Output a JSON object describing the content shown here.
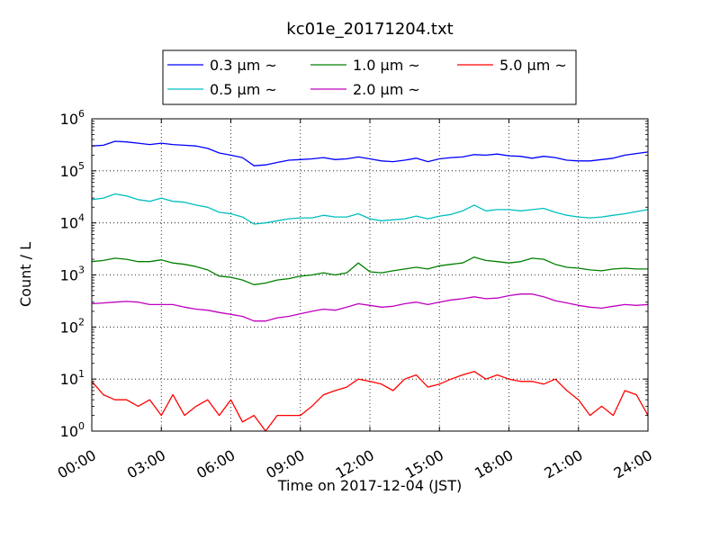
{
  "chart_data": {
    "type": "line",
    "title": "kc01e_20171204.txt",
    "xlabel": "Time on 2017-12-04 (JST)",
    "ylabel": "Count / L",
    "yscale": "log",
    "ylim": [
      1,
      1000000
    ],
    "xlim": [
      "00:00",
      "24:00"
    ],
    "grid": true,
    "legend_position": "top-center",
    "x_ticks": [
      "00:00",
      "03:00",
      "06:00",
      "09:00",
      "12:00",
      "15:00",
      "18:00",
      "21:00",
      "24:00"
    ],
    "y_ticks": [
      {
        "base": "10",
        "exp": "0"
      },
      {
        "base": "10",
        "exp": "1"
      },
      {
        "base": "10",
        "exp": "2"
      },
      {
        "base": "10",
        "exp": "3"
      },
      {
        "base": "10",
        "exp": "4"
      },
      {
        "base": "10",
        "exp": "5"
      },
      {
        "base": "10",
        "exp": "6"
      }
    ],
    "x_hours": [
      0,
      0.5,
      1,
      1.5,
      2,
      2.5,
      3,
      3.5,
      4,
      4.5,
      5,
      5.5,
      6,
      6.5,
      7,
      7.5,
      8,
      8.5,
      9,
      9.5,
      10,
      10.5,
      11,
      11.5,
      12,
      12.5,
      13,
      13.5,
      14,
      14.5,
      15,
      15.5,
      16,
      16.5,
      17,
      17.5,
      18,
      18.5,
      19,
      19.5,
      20,
      20.5,
      21,
      21.5,
      22,
      22.5,
      23,
      23.5,
      24
    ],
    "series": [
      {
        "name": "0.3 μm ~",
        "color": "#0000ff",
        "values": [
          300000,
          310000,
          370000,
          360000,
          340000,
          320000,
          340000,
          320000,
          310000,
          300000,
          270000,
          220000,
          200000,
          180000,
          125000,
          130000,
          145000,
          160000,
          165000,
          170000,
          180000,
          165000,
          170000,
          185000,
          170000,
          155000,
          150000,
          160000,
          175000,
          150000,
          170000,
          180000,
          185000,
          205000,
          200000,
          210000,
          195000,
          190000,
          175000,
          190000,
          180000,
          160000,
          155000,
          155000,
          165000,
          175000,
          200000,
          215000,
          230000
        ]
      },
      {
        "name": "0.5 μm ~",
        "color": "#00bfbf",
        "values": [
          28000,
          30000,
          36000,
          33000,
          28000,
          26000,
          30000,
          26000,
          25000,
          22000,
          20000,
          16000,
          15000,
          13000,
          9500,
          10000,
          11000,
          12000,
          12500,
          12500,
          14000,
          13000,
          13000,
          15000,
          12000,
          11000,
          11500,
          12000,
          13500,
          12000,
          13500,
          14500,
          17000,
          22000,
          17000,
          18000,
          18000,
          17000,
          18000,
          19000,
          16000,
          14000,
          13000,
          12500,
          13000,
          14000,
          15000,
          16500,
          18000
        ]
      },
      {
        "name": "1.0 μm ~",
        "color": "#008000",
        "values": [
          1800,
          1900,
          2100,
          2000,
          1800,
          1800,
          1950,
          1700,
          1600,
          1450,
          1250,
          950,
          900,
          800,
          650,
          700,
          800,
          850,
          950,
          1000,
          1100,
          1000,
          1100,
          1700,
          1150,
          1100,
          1200,
          1300,
          1400,
          1300,
          1500,
          1600,
          1700,
          2200,
          1900,
          1800,
          1700,
          1800,
          2100,
          2000,
          1600,
          1400,
          1350,
          1250,
          1200,
          1300,
          1350,
          1300,
          1300
        ]
      },
      {
        "name": "2.0 μm ~",
        "color": "#bf00bf",
        "values": [
          280,
          290,
          300,
          310,
          300,
          270,
          270,
          270,
          240,
          220,
          210,
          190,
          175,
          160,
          130,
          130,
          150,
          160,
          180,
          200,
          220,
          210,
          240,
          280,
          260,
          240,
          250,
          280,
          300,
          270,
          300,
          330,
          350,
          380,
          350,
          360,
          400,
          430,
          430,
          380,
          320,
          290,
          260,
          240,
          230,
          250,
          270,
          260,
          270
        ]
      },
      {
        "name": "5.0 μm ~",
        "color": "#ff0000",
        "values": [
          9,
          5,
          4,
          4,
          3,
          4,
          2,
          5,
          2,
          3,
          4,
          2,
          4,
          1.5,
          2,
          1,
          2,
          2,
          2,
          3,
          5,
          6,
          7,
          10,
          9,
          8,
          6,
          10,
          12,
          7,
          8,
          10,
          12,
          14,
          10,
          12,
          10,
          9,
          9,
          8,
          10,
          6,
          4,
          2,
          3,
          2,
          6,
          5,
          2
        ]
      }
    ]
  }
}
